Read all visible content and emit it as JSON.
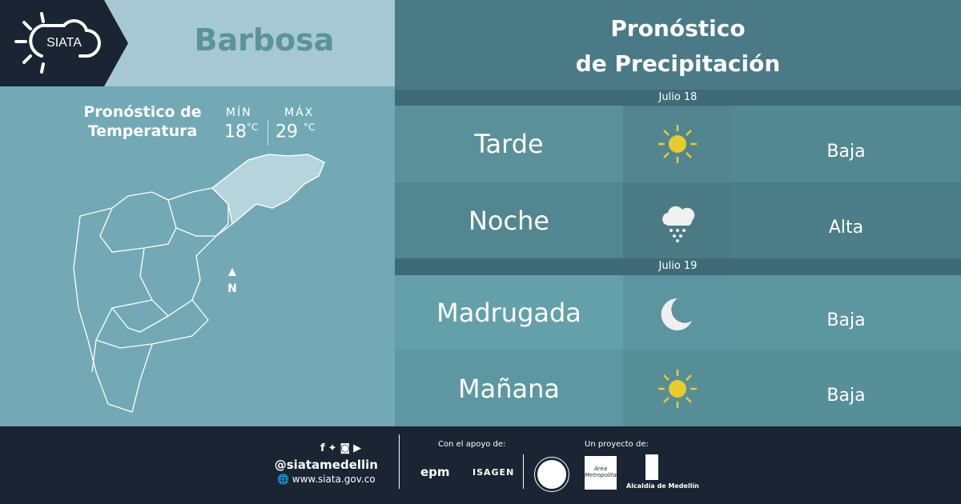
{
  "logo": {
    "text": "SIATA"
  },
  "city": "Barbosa",
  "temperature": {
    "title_line1": "Pronóstico de",
    "title_line2": "Temperatura",
    "min_label": "MÍN",
    "max_label": "MÁX",
    "min_value": "18",
    "max_value": "29",
    "unit": "°C"
  },
  "map": {
    "north_label": "N"
  },
  "precipitation": {
    "title_line1": "Pronóstico",
    "title_line2": "de Precipitación",
    "days": [
      {
        "date": "Julio 18",
        "periods": [
          {
            "name": "Tarde",
            "icon": "sun-icon",
            "level": "Baja"
          },
          {
            "name": "Noche",
            "icon": "rain-cloud-icon",
            "level": "Alta"
          }
        ]
      },
      {
        "date": "Julio 19",
        "periods": [
          {
            "name": "Madrugada",
            "icon": "moon-icon",
            "level": "Baja"
          },
          {
            "name": "Mañana",
            "icon": "sun-icon",
            "level": "Baja"
          }
        ]
      }
    ]
  },
  "footer": {
    "handle": "@siatamedellin",
    "website": "www.siata.gov.co",
    "support_label": "Con el apoyo de:",
    "project_label": "Un proyecto de:",
    "sponsors": [
      "epm",
      "ISAGEN"
    ],
    "partners": [
      "Área Metropolitana",
      "Alcaldía de Medellín"
    ]
  },
  "colors": {
    "dark": "#1a2433",
    "sun": "#e8cc2e",
    "light_panel": "#a5c8d3"
  }
}
